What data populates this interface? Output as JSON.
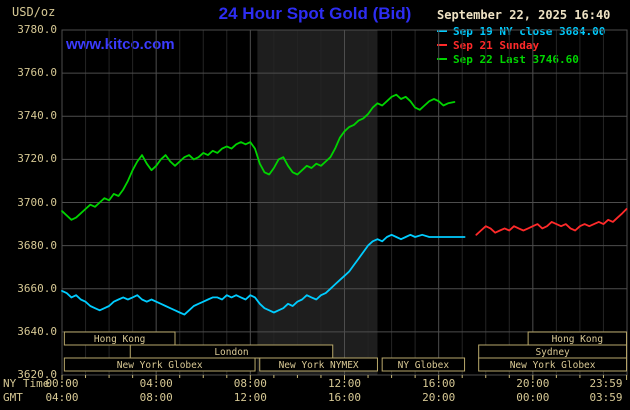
{
  "header": {
    "y_unit": "USD/oz",
    "title": "24 Hour Spot Gold (Bid)",
    "datetime": "September 22, 2025 16:40",
    "watermark": "www.kitco.com",
    "legend": [
      {
        "label": "Sep 19 NY close 3684.00",
        "color": "#00ccff"
      },
      {
        "label": "Sep 21 Sunday",
        "color": "#ff2a2a"
      },
      {
        "label": "Sep 22 Last 3746.60",
        "color": "#00d400"
      }
    ]
  },
  "chart_data": {
    "type": "line",
    "title": "24 Hour Spot Gold (Bid)",
    "ylabel": "USD/oz",
    "colors": {
      "band": "#1e1e1e",
      "grid_major": "#4d4d4d",
      "grid_minor": "#242424",
      "axis_tick": "#c8b878",
      "session_border": "#b9a96b",
      "session_text": "#d8c894"
    },
    "x_axis": {
      "label_left_row1": "NY Time",
      "label_left_row2": "GMT",
      "range_hours": [
        0,
        24
      ],
      "tick_hours": [
        0,
        4,
        8,
        12,
        16,
        20,
        23.983
      ],
      "ticks_ny": [
        "00:00",
        "04:00",
        "08:00",
        "12:00",
        "16:00",
        "20:00",
        "23:59"
      ],
      "ticks_gmt": [
        "04:00",
        "08:00",
        "12:00",
        "16:00",
        "20:00",
        "00:00",
        "03:59"
      ]
    },
    "y_axis": {
      "min": 3620,
      "max": 3780,
      "step": 20,
      "ticks": [
        "3780.0",
        "3760.0",
        "3740.0",
        "3720.0",
        "3700.0",
        "3680.0",
        "3660.0",
        "3640.0",
        "3620.0"
      ]
    },
    "shaded_band_hours": [
      8.3,
      13.4
    ],
    "sessions": [
      {
        "label": "Hong Kong",
        "row": 0,
        "start": 0.1,
        "end": 4.8
      },
      {
        "label": "Hong Kong",
        "row": 0,
        "start": 19.8,
        "end": 23.98
      },
      {
        "label": "London",
        "row": 1,
        "start": 2.9,
        "end": 11.5
      },
      {
        "label": "Sydney",
        "row": 1,
        "start": 17.7,
        "end": 23.98
      },
      {
        "label": "New York Globex",
        "row": 2,
        "start": 0.1,
        "end": 8.2
      },
      {
        "label": "New York NYMEX",
        "row": 2,
        "start": 8.4,
        "end": 13.4
      },
      {
        "label": "NY Globex",
        "row": 2,
        "start": 13.6,
        "end": 17.1
      },
      {
        "label": "New York Globex",
        "row": 2,
        "start": 17.7,
        "end": 23.98
      }
    ],
    "series": [
      {
        "id": "sep19",
        "name": "Sep 19 NY close 3684.00",
        "color": "#00ccff",
        "close": 3684.0,
        "points": [
          [
            0,
            3659
          ],
          [
            0.2,
            3658
          ],
          [
            0.4,
            3656
          ],
          [
            0.6,
            3657
          ],
          [
            0.8,
            3655
          ],
          [
            1,
            3654
          ],
          [
            1.2,
            3652
          ],
          [
            1.4,
            3651
          ],
          [
            1.6,
            3650
          ],
          [
            1.8,
            3651
          ],
          [
            2,
            3652
          ],
          [
            2.2,
            3654
          ],
          [
            2.4,
            3655
          ],
          [
            2.6,
            3656
          ],
          [
            2.8,
            3655
          ],
          [
            3,
            3656
          ],
          [
            3.2,
            3657
          ],
          [
            3.4,
            3655
          ],
          [
            3.6,
            3654
          ],
          [
            3.8,
            3655
          ],
          [
            4,
            3654
          ],
          [
            4.2,
            3653
          ],
          [
            4.4,
            3652
          ],
          [
            4.6,
            3651
          ],
          [
            4.8,
            3650
          ],
          [
            5,
            3649
          ],
          [
            5.2,
            3648
          ],
          [
            5.4,
            3650
          ],
          [
            5.6,
            3652
          ],
          [
            5.8,
            3653
          ],
          [
            6,
            3654
          ],
          [
            6.2,
            3655
          ],
          [
            6.4,
            3656
          ],
          [
            6.6,
            3656
          ],
          [
            6.8,
            3655
          ],
          [
            7,
            3657
          ],
          [
            7.2,
            3656
          ],
          [
            7.4,
            3657
          ],
          [
            7.6,
            3656
          ],
          [
            7.8,
            3655
          ],
          [
            8,
            3657
          ],
          [
            8.2,
            3656
          ],
          [
            8.4,
            3653
          ],
          [
            8.6,
            3651
          ],
          [
            8.8,
            3650
          ],
          [
            9,
            3649
          ],
          [
            9.2,
            3650
          ],
          [
            9.4,
            3651
          ],
          [
            9.6,
            3653
          ],
          [
            9.8,
            3652
          ],
          [
            10,
            3654
          ],
          [
            10.2,
            3655
          ],
          [
            10.4,
            3657
          ],
          [
            10.6,
            3656
          ],
          [
            10.8,
            3655
          ],
          [
            11,
            3657
          ],
          [
            11.2,
            3658
          ],
          [
            11.4,
            3660
          ],
          [
            11.6,
            3662
          ],
          [
            11.8,
            3664
          ],
          [
            12,
            3666
          ],
          [
            12.2,
            3668
          ],
          [
            12.4,
            3671
          ],
          [
            12.6,
            3674
          ],
          [
            12.8,
            3677
          ],
          [
            13,
            3680
          ],
          [
            13.2,
            3682
          ],
          [
            13.4,
            3683
          ],
          [
            13.6,
            3682
          ],
          [
            13.8,
            3684
          ],
          [
            14,
            3685
          ],
          [
            14.2,
            3684
          ],
          [
            14.4,
            3683
          ],
          [
            14.6,
            3684
          ],
          [
            14.8,
            3685
          ],
          [
            15,
            3684
          ],
          [
            15.3,
            3685
          ],
          [
            15.6,
            3684
          ],
          [
            16,
            3684
          ],
          [
            16.4,
            3684
          ],
          [
            16.8,
            3684
          ],
          [
            17.1,
            3684
          ]
        ]
      },
      {
        "id": "sep21",
        "name": "Sep 21 Sunday",
        "color": "#ff2a2a",
        "points": [
          [
            17.6,
            3685
          ],
          [
            17.8,
            3687
          ],
          [
            18,
            3689
          ],
          [
            18.2,
            3688
          ],
          [
            18.4,
            3686
          ],
          [
            18.6,
            3687
          ],
          [
            18.8,
            3688
          ],
          [
            19,
            3687
          ],
          [
            19.2,
            3689
          ],
          [
            19.4,
            3688
          ],
          [
            19.6,
            3687
          ],
          [
            19.8,
            3688
          ],
          [
            20,
            3689
          ],
          [
            20.2,
            3690
          ],
          [
            20.4,
            3688
          ],
          [
            20.6,
            3689
          ],
          [
            20.8,
            3691
          ],
          [
            21,
            3690
          ],
          [
            21.2,
            3689
          ],
          [
            21.4,
            3690
          ],
          [
            21.6,
            3688
          ],
          [
            21.8,
            3687
          ],
          [
            22,
            3689
          ],
          [
            22.2,
            3690
          ],
          [
            22.4,
            3689
          ],
          [
            22.6,
            3690
          ],
          [
            22.8,
            3691
          ],
          [
            23,
            3690
          ],
          [
            23.2,
            3692
          ],
          [
            23.4,
            3691
          ],
          [
            23.6,
            3693
          ],
          [
            23.8,
            3695
          ],
          [
            23.98,
            3697
          ]
        ]
      },
      {
        "id": "sep22",
        "name": "Sep 22 Last 3746.60",
        "color": "#00d400",
        "last": 3746.6,
        "points": [
          [
            0,
            3696
          ],
          [
            0.2,
            3694
          ],
          [
            0.4,
            3692
          ],
          [
            0.6,
            3693
          ],
          [
            0.8,
            3695
          ],
          [
            1,
            3697
          ],
          [
            1.2,
            3699
          ],
          [
            1.4,
            3698
          ],
          [
            1.6,
            3700
          ],
          [
            1.8,
            3702
          ],
          [
            2,
            3701
          ],
          [
            2.2,
            3704
          ],
          [
            2.4,
            3703
          ],
          [
            2.6,
            3706
          ],
          [
            2.8,
            3710
          ],
          [
            3,
            3715
          ],
          [
            3.2,
            3719
          ],
          [
            3.4,
            3722
          ],
          [
            3.6,
            3718
          ],
          [
            3.8,
            3715
          ],
          [
            4,
            3717
          ],
          [
            4.2,
            3720
          ],
          [
            4.4,
            3722
          ],
          [
            4.6,
            3719
          ],
          [
            4.8,
            3717
          ],
          [
            5,
            3719
          ],
          [
            5.2,
            3721
          ],
          [
            5.4,
            3722
          ],
          [
            5.6,
            3720
          ],
          [
            5.8,
            3721
          ],
          [
            6,
            3723
          ],
          [
            6.2,
            3722
          ],
          [
            6.4,
            3724
          ],
          [
            6.6,
            3723
          ],
          [
            6.8,
            3725
          ],
          [
            7,
            3726
          ],
          [
            7.2,
            3725
          ],
          [
            7.4,
            3727
          ],
          [
            7.6,
            3728
          ],
          [
            7.8,
            3727
          ],
          [
            8,
            3728
          ],
          [
            8.2,
            3725
          ],
          [
            8.4,
            3718
          ],
          [
            8.6,
            3714
          ],
          [
            8.8,
            3713
          ],
          [
            9,
            3716
          ],
          [
            9.2,
            3720
          ],
          [
            9.4,
            3721
          ],
          [
            9.6,
            3717
          ],
          [
            9.8,
            3714
          ],
          [
            10,
            3713
          ],
          [
            10.2,
            3715
          ],
          [
            10.4,
            3717
          ],
          [
            10.6,
            3716
          ],
          [
            10.8,
            3718
          ],
          [
            11,
            3717
          ],
          [
            11.2,
            3719
          ],
          [
            11.4,
            3721
          ],
          [
            11.6,
            3725
          ],
          [
            11.8,
            3730
          ],
          [
            12,
            3733
          ],
          [
            12.2,
            3735
          ],
          [
            12.4,
            3736
          ],
          [
            12.6,
            3738
          ],
          [
            12.8,
            3739
          ],
          [
            13,
            3741
          ],
          [
            13.2,
            3744
          ],
          [
            13.4,
            3746
          ],
          [
            13.6,
            3745
          ],
          [
            13.8,
            3747
          ],
          [
            14,
            3749
          ],
          [
            14.2,
            3750
          ],
          [
            14.4,
            3748
          ],
          [
            14.6,
            3749
          ],
          [
            14.8,
            3747
          ],
          [
            15,
            3744
          ],
          [
            15.2,
            3743
          ],
          [
            15.4,
            3745
          ],
          [
            15.6,
            3747
          ],
          [
            15.8,
            3748
          ],
          [
            16,
            3747
          ],
          [
            16.2,
            3745
          ],
          [
            16.4,
            3746
          ],
          [
            16.67,
            3746.6
          ]
        ]
      }
    ]
  }
}
